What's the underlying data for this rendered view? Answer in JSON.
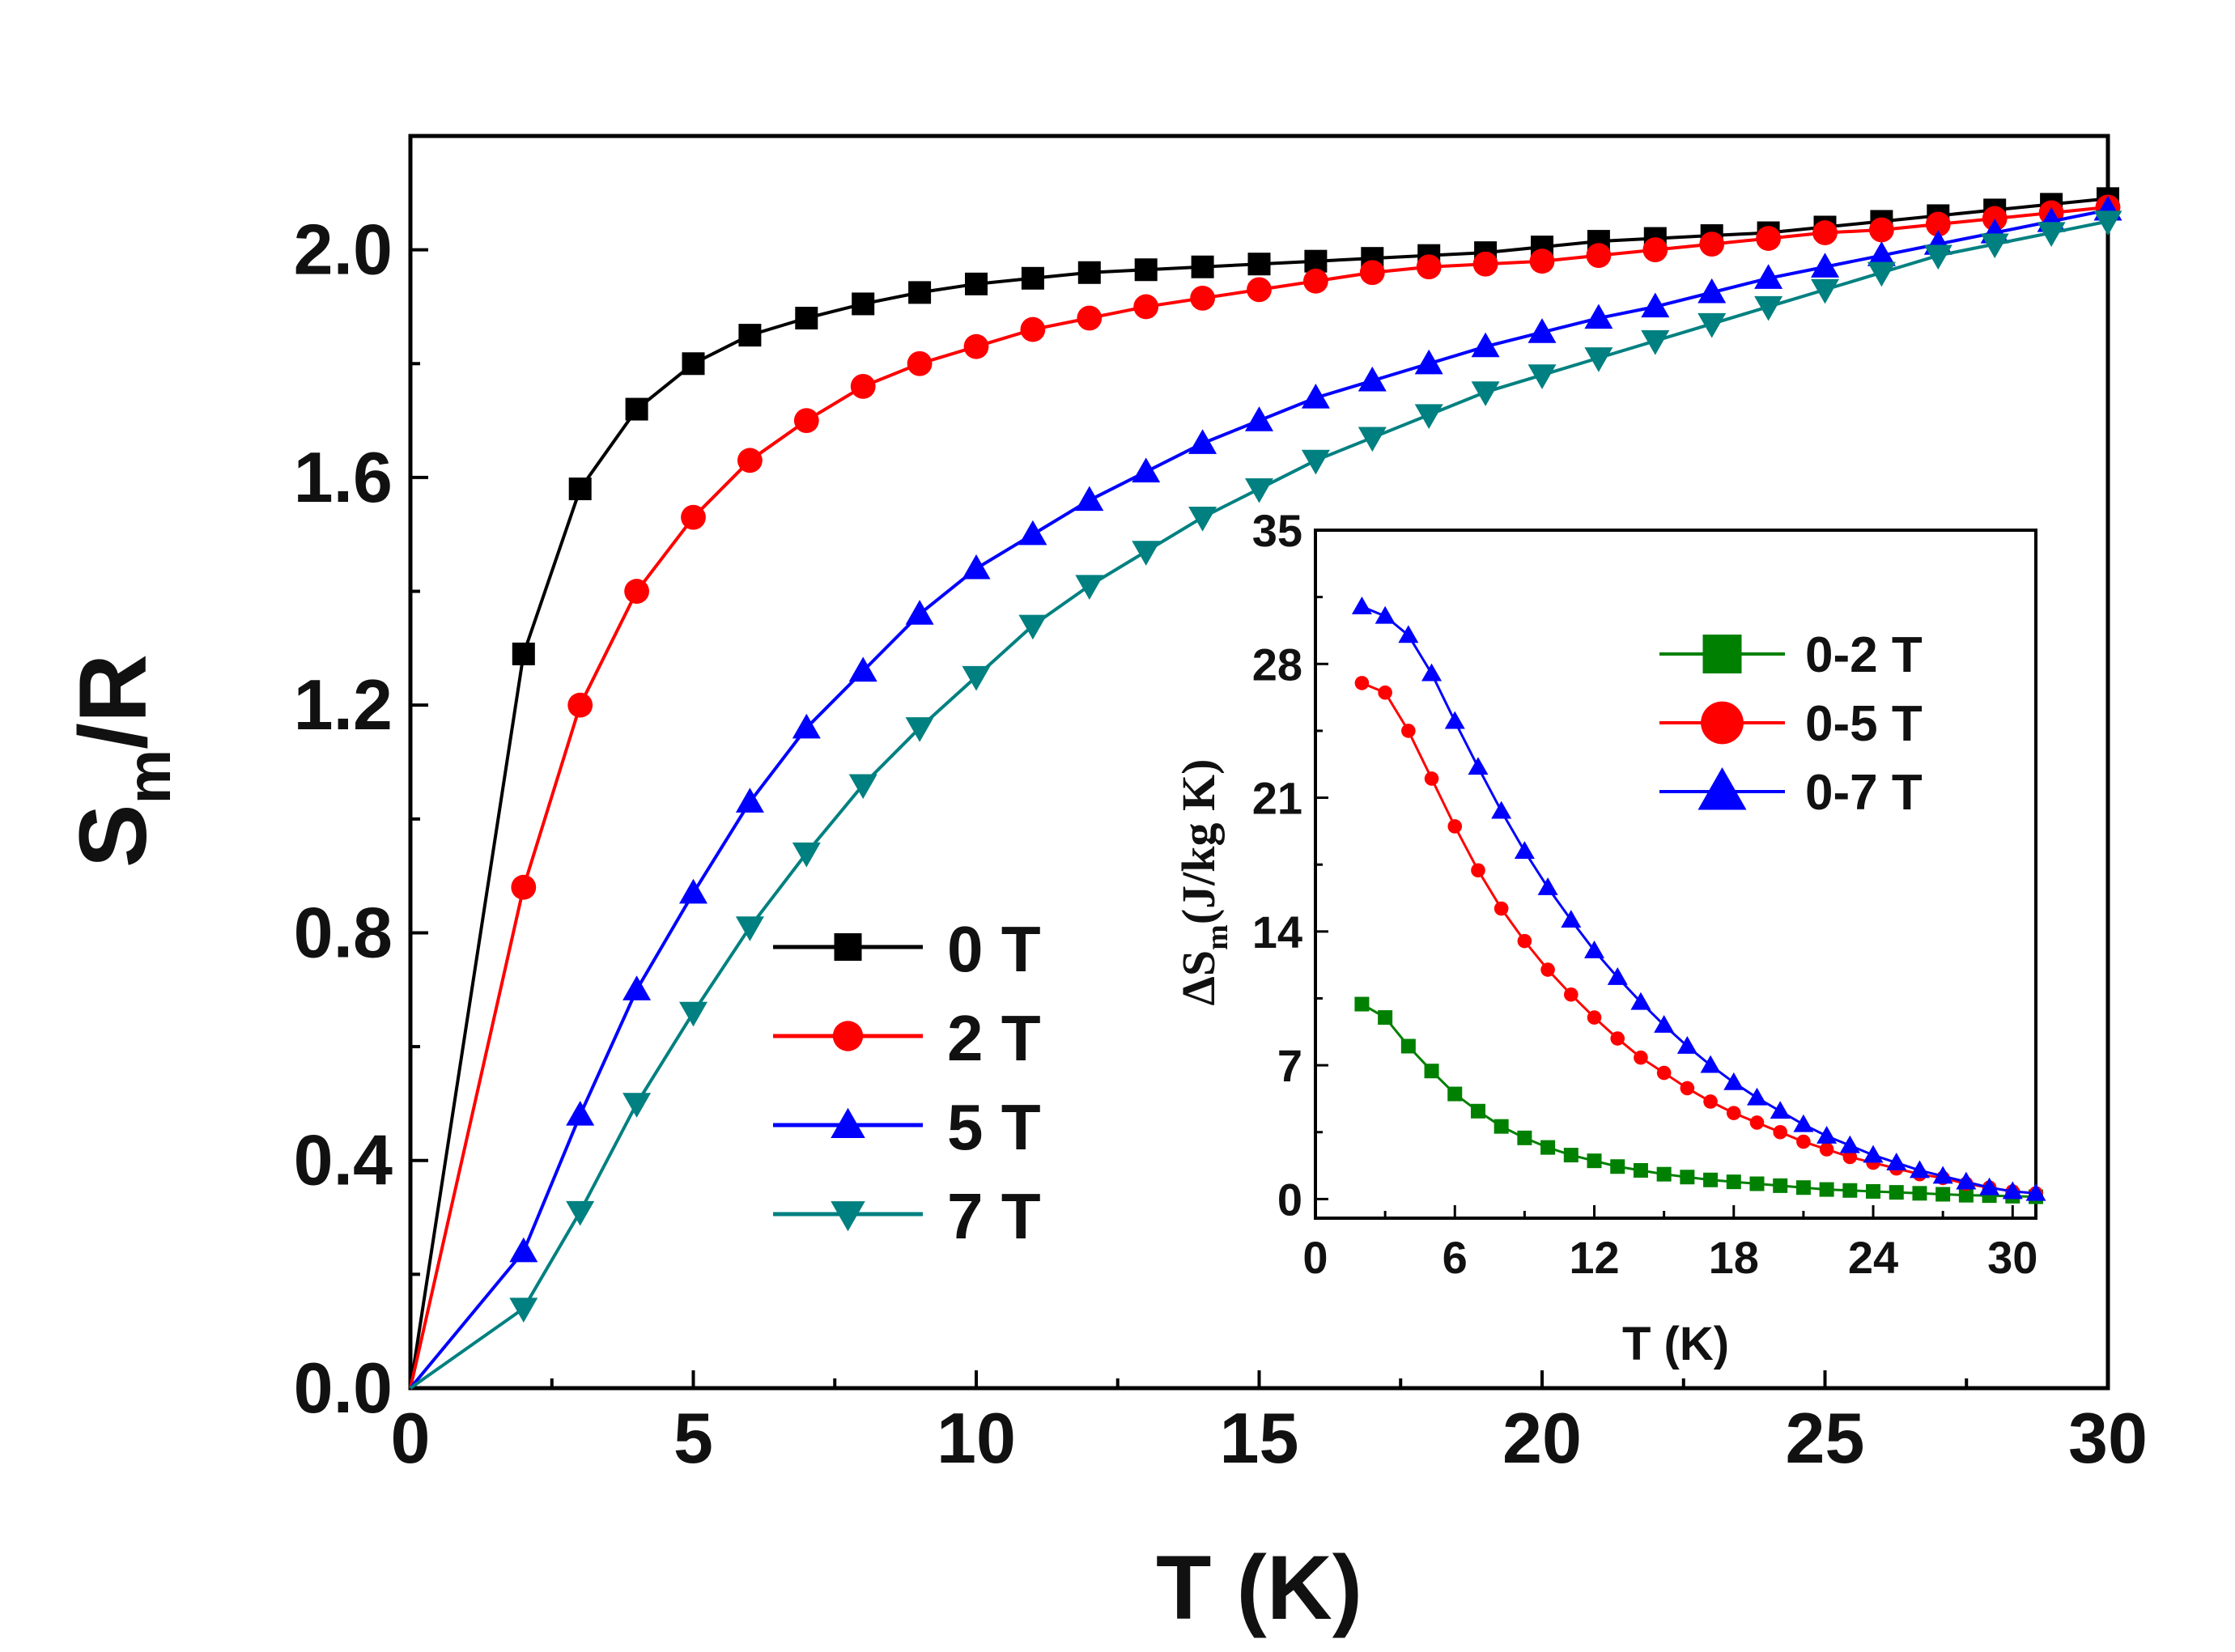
{
  "chart_data": [
    {
      "type": "line",
      "xlabel": "T (K)",
      "ylabel": "S",
      "ylabel_sub": "m",
      "ylabel_tail": "/R",
      "xlim": [
        0,
        30
      ],
      "ylim": [
        0,
        2.2
      ],
      "xticks": [
        0,
        5,
        10,
        15,
        20,
        25,
        30
      ],
      "yticks": [
        0.0,
        0.4,
        0.8,
        1.2,
        1.6,
        2.0
      ],
      "ytick_labels": [
        "0.0",
        "0.4",
        "0.8",
        "1.2",
        "1.6",
        "2.0"
      ],
      "grid": false,
      "legend": "center",
      "x": [
        0,
        2,
        3,
        4,
        5,
        6,
        7,
        8,
        9,
        10,
        11,
        12,
        13,
        14,
        15,
        16,
        17,
        18,
        19,
        20,
        21,
        22,
        23,
        24,
        25,
        26,
        27,
        28,
        29,
        30
      ],
      "series": [
        {
          "name": "0 T",
          "color": "#000000",
          "marker": "square",
          "values": [
            0.0,
            1.29,
            1.58,
            1.72,
            1.8,
            1.85,
            1.88,
            1.905,
            1.925,
            1.94,
            1.95,
            1.96,
            1.965,
            1.97,
            1.975,
            1.98,
            1.985,
            1.99,
            1.995,
            2.005,
            2.015,
            2.02,
            2.025,
            2.03,
            2.04,
            2.05,
            2.06,
            2.07,
            2.08,
            2.09
          ]
        },
        {
          "name": "2 T",
          "color": "#ff0000",
          "marker": "circle",
          "values": [
            0.0,
            0.88,
            1.2,
            1.4,
            1.53,
            1.63,
            1.7,
            1.76,
            1.8,
            1.83,
            1.86,
            1.88,
            1.9,
            1.915,
            1.93,
            1.945,
            1.96,
            1.97,
            1.975,
            1.98,
            1.99,
            2.0,
            2.01,
            2.02,
            2.03,
            2.035,
            2.045,
            2.055,
            2.065,
            2.075
          ]
        },
        {
          "name": "5 T",
          "color": "#0000ff",
          "marker": "triangle-up",
          "values": [
            0.0,
            0.24,
            0.48,
            0.7,
            0.87,
            1.03,
            1.16,
            1.26,
            1.36,
            1.44,
            1.5,
            1.56,
            1.61,
            1.66,
            1.7,
            1.74,
            1.77,
            1.8,
            1.83,
            1.855,
            1.88,
            1.9,
            1.925,
            1.95,
            1.97,
            1.99,
            2.01,
            2.03,
            2.05,
            2.07
          ]
        },
        {
          "name": "7 T",
          "color": "#008080",
          "marker": "triangle-down",
          "values": [
            0.0,
            0.14,
            0.31,
            0.5,
            0.66,
            0.81,
            0.94,
            1.06,
            1.16,
            1.25,
            1.34,
            1.41,
            1.47,
            1.53,
            1.58,
            1.63,
            1.67,
            1.71,
            1.75,
            1.78,
            1.81,
            1.84,
            1.87,
            1.9,
            1.93,
            1.96,
            1.99,
            2.01,
            2.03,
            2.05
          ]
        }
      ]
    },
    {
      "type": "line",
      "xlabel": "T (K)",
      "ylabel": "ΔS",
      "ylabel_sub": "m",
      "ylabel_tail": "(J/kg K)",
      "xlim": [
        0,
        31
      ],
      "ylim": [
        -1,
        35
      ],
      "xticks": [
        0,
        6,
        12,
        18,
        24,
        30
      ],
      "yticks": [
        0,
        7,
        14,
        21,
        28,
        35
      ],
      "grid": false,
      "legend": "top-right",
      "x": [
        2,
        3,
        4,
        5,
        6,
        7,
        8,
        9,
        10,
        11,
        12,
        13,
        14,
        15,
        16,
        17,
        18,
        19,
        20,
        21,
        22,
        23,
        24,
        25,
        26,
        27,
        28,
        29,
        30,
        31
      ],
      "series": [
        {
          "name": "0-2 T",
          "color": "#008000",
          "marker": "square",
          "values": [
            10.2,
            9.5,
            8.0,
            6.7,
            5.5,
            4.6,
            3.8,
            3.2,
            2.7,
            2.3,
            2.0,
            1.7,
            1.5,
            1.3,
            1.15,
            1.0,
            0.9,
            0.8,
            0.7,
            0.6,
            0.5,
            0.45,
            0.4,
            0.35,
            0.3,
            0.25,
            0.2,
            0.18,
            0.15,
            0.12
          ]
        },
        {
          "name": "0-5 T",
          "color": "#ff0000",
          "marker": "circle",
          "values": [
            27.0,
            26.5,
            24.5,
            22.0,
            19.5,
            17.2,
            15.2,
            13.5,
            12.0,
            10.7,
            9.5,
            8.4,
            7.4,
            6.6,
            5.8,
            5.1,
            4.5,
            4.0,
            3.5,
            3.0,
            2.6,
            2.2,
            1.9,
            1.6,
            1.3,
            1.1,
            0.8,
            0.6,
            0.4,
            0.3
          ]
        },
        {
          "name": "0-7 T",
          "color": "#0000ff",
          "marker": "triangle-up",
          "values": [
            31.0,
            30.5,
            29.5,
            27.5,
            25.0,
            22.6,
            20.3,
            18.2,
            16.3,
            14.6,
            13.0,
            11.6,
            10.3,
            9.1,
            8.0,
            7.0,
            6.1,
            5.3,
            4.6,
            3.9,
            3.3,
            2.8,
            2.3,
            1.9,
            1.5,
            1.2,
            0.9,
            0.6,
            0.4,
            0.3
          ]
        }
      ]
    }
  ]
}
